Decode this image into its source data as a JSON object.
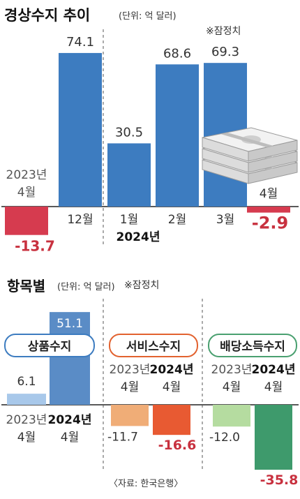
{
  "source": "〈자료: 한국은행〉",
  "chart_data": [
    {
      "type": "bar",
      "title": "경상수지 추이",
      "unit": "(단위: 억 달러)",
      "note": "※잠정치",
      "categories": [
        "2023년 4월",
        "12월",
        "1월",
        "2월",
        "3월",
        "4월"
      ],
      "values": [
        -13.7,
        74.1,
        30.5,
        68.6,
        69.3,
        -2.9
      ],
      "value_labels": [
        "-13.7",
        "74.1",
        "30.5",
        "68.6",
        "69.3",
        "-2.9"
      ],
      "category_labels": [
        [
          "2023년",
          "4월"
        ],
        [
          "12월"
        ],
        [
          "1월"
        ],
        [
          "2월"
        ],
        [
          "3월"
        ],
        [
          "4월"
        ]
      ],
      "year_label": "2024년",
      "colors": {
        "positive": "#3d7cc0",
        "negative": "#d63b4f",
        "negative_label": "#c8313f"
      }
    },
    {
      "type": "bar",
      "title": "항목별",
      "unit": "(단위: 억 달러)",
      "note": "※잠정치",
      "groups": [
        {
          "name": "상품수지",
          "border": "#3d7cc0",
          "labels": [
            [
              "2023년",
              "4월"
            ],
            [
              "2024년",
              "4월"
            ]
          ],
          "values": [
            6.1,
            51.1
          ],
          "value_labels": [
            "6.1",
            "51.1"
          ],
          "colors": [
            "#a8c8ea",
            "#5a8cc6"
          ]
        },
        {
          "name": "서비스수지",
          "border": "#e2622f",
          "labels": [
            [
              "2023년",
              "4월"
            ],
            [
              "2024년",
              "4월"
            ]
          ],
          "values": [
            -11.7,
            -16.6
          ],
          "value_labels": [
            "-11.7",
            "-16.6"
          ],
          "colors": [
            "#f0ad77",
            "#e85a32"
          ]
        },
        {
          "name": "배당소득수지",
          "border": "#4aa070",
          "labels": [
            [
              "2023년",
              "4월"
            ],
            [
              "2024년",
              "4월"
            ]
          ],
          "values": [
            -12.0,
            -35.8
          ],
          "value_labels": [
            "-12.0",
            "-35.8"
          ],
          "colors": [
            "#b5dca0",
            "#3e9a6c"
          ]
        }
      ]
    }
  ]
}
